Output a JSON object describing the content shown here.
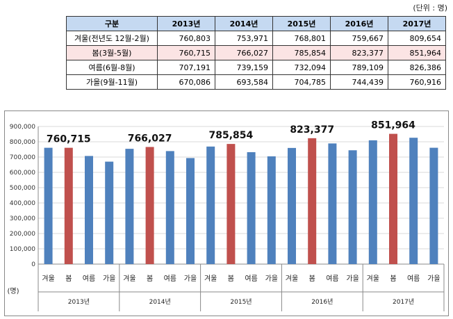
{
  "unit_note": "(단위 : 명)",
  "table": {
    "header": [
      "구분",
      "2013년",
      "2014년",
      "2015년",
      "2016년",
      "2017년"
    ],
    "rows": [
      {
        "label": "겨울(전년도 12월-2월)",
        "values": [
          "760,803",
          "753,971",
          "768,801",
          "759,667",
          "809,654"
        ]
      },
      {
        "label": "봄(3월-5월)",
        "values": [
          "760,715",
          "766,027",
          "785,854",
          "823,377",
          "851,964"
        ]
      },
      {
        "label": "여름(6월-8월)",
        "values": [
          "707,191",
          "739,159",
          "732,094",
          "789,109",
          "826,386"
        ]
      },
      {
        "label": "가을(9월-11월)",
        "values": [
          "670,086",
          "693,584",
          "704,785",
          "744,439",
          "760,916"
        ]
      }
    ]
  },
  "chart_data": {
    "type": "bar",
    "ylabel": "(명)",
    "ylim": [
      0,
      900000
    ],
    "yticks": [
      "0",
      "100,000",
      "200,000",
      "300,000",
      "400,000",
      "500,000",
      "600,000",
      "700,000",
      "800,000",
      "900,000"
    ],
    "groups": [
      "2013년",
      "2014년",
      "2015년",
      "2016년",
      "2017년"
    ],
    "categories": [
      "겨울",
      "봄",
      "여름",
      "가을"
    ],
    "values": [
      [
        760803,
        760715,
        707191,
        670086
      ],
      [
        753971,
        766027,
        739159,
        693584
      ],
      [
        768801,
        785854,
        732094,
        704785
      ],
      [
        759667,
        823377,
        789109,
        744439
      ],
      [
        809654,
        851964,
        826386,
        760916
      ]
    ],
    "highlight_category": "봄",
    "data_labels": [
      "760,715",
      "766,027",
      "785,854",
      "823,377",
      "851,964"
    ],
    "colors": {
      "default": "#4f81bd",
      "highlight": "#c0504d"
    },
    "grid": true
  }
}
